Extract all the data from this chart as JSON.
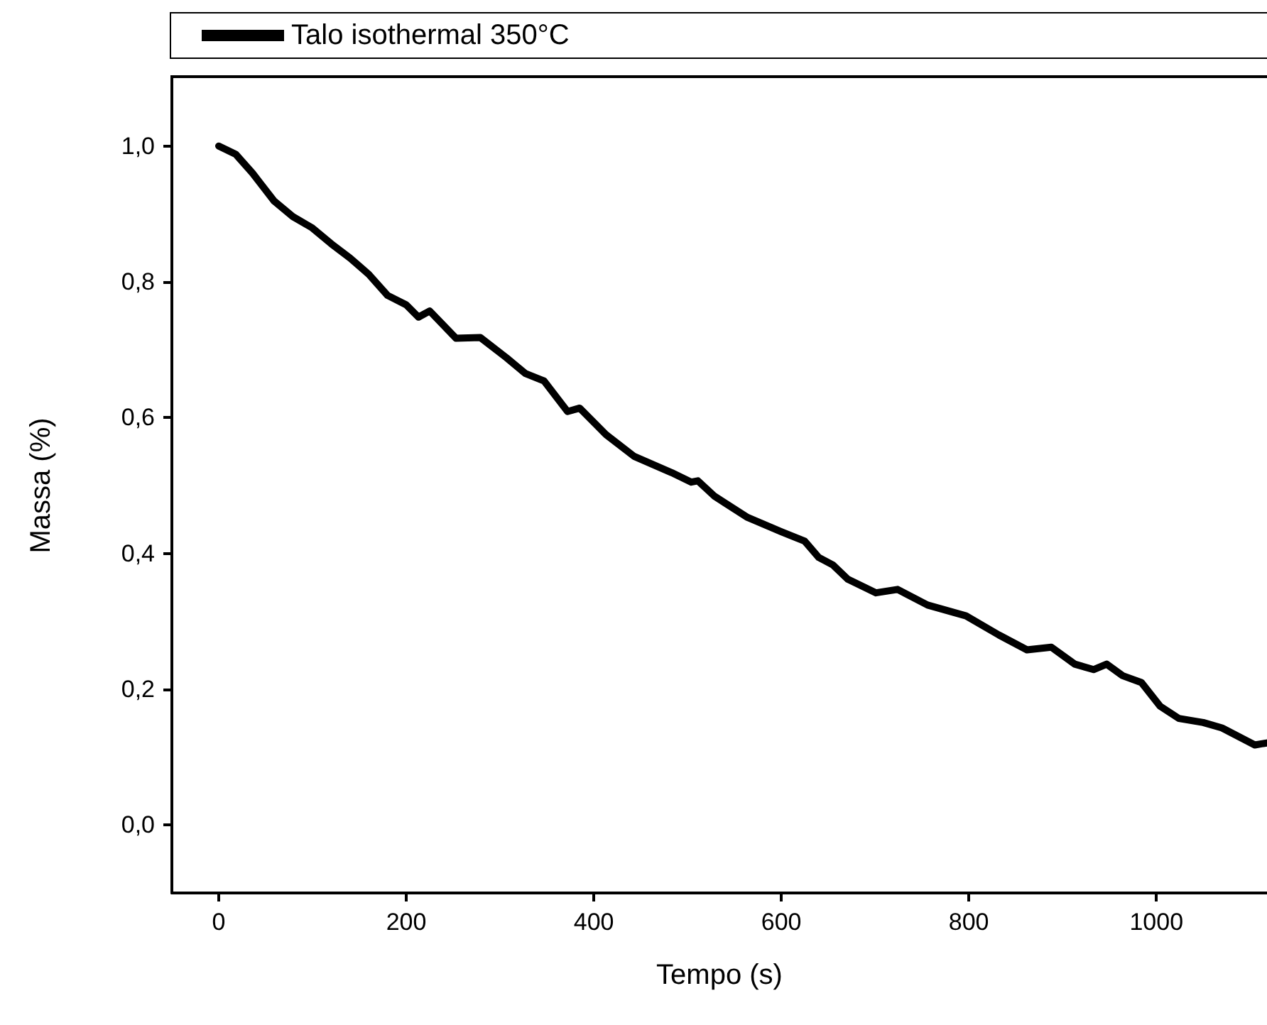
{
  "chart_data": {
    "type": "line",
    "xlabel": "Tempo (s)",
    "ylabel": "Massa (%)",
    "legend": "top",
    "marker": "none",
    "line_style": "solid",
    "xlim": [
      -50,
      1118
    ],
    "xticks": [
      0,
      200,
      400,
      600,
      800,
      1000
    ],
    "ylim": [
      -0.1,
      1.1
    ],
    "yticks": [
      {
        "value": 0,
        "label": "0,0"
      },
      {
        "value": 0.2,
        "label": "0,2"
      },
      {
        "value": 0.4,
        "label": "0,4"
      },
      {
        "value": 0.6,
        "label": "0,6"
      },
      {
        "value": 0.8,
        "label": "0,8"
      },
      {
        "value": 1.0,
        "label": "1,0"
      }
    ],
    "series": [
      {
        "name": "Talo isothermal 350°C",
        "color": "#000000",
        "x": [
          0,
          18,
          36,
          59,
          79,
          99,
          120,
          140,
          160,
          180,
          200,
          213,
          225,
          253,
          279,
          307,
          327,
          347,
          372,
          385,
          413,
          443,
          483,
          504,
          511,
          529,
          564,
          600,
          625,
          640,
          655,
          671,
          701,
          724,
          756,
          797,
          832,
          862,
          888,
          913,
          933,
          947,
          964,
          984,
          1004,
          1024,
          1050,
          1070,
          1105,
          1118
        ],
        "values": [
          1.0,
          0.988,
          0.96,
          0.919,
          0.896,
          0.88,
          0.856,
          0.835,
          0.811,
          0.78,
          0.766,
          0.748,
          0.757,
          0.717,
          0.718,
          0.688,
          0.665,
          0.654,
          0.609,
          0.614,
          0.575,
          0.543,
          0.519,
          0.505,
          0.507,
          0.484,
          0.453,
          0.432,
          0.418,
          0.394,
          0.383,
          0.362,
          0.342,
          0.347,
          0.324,
          0.308,
          0.28,
          0.258,
          0.262,
          0.237,
          0.229,
          0.237,
          0.22,
          0.21,
          0.175,
          0.157,
          0.151,
          0.143,
          0.118,
          0.121
        ]
      }
    ]
  }
}
